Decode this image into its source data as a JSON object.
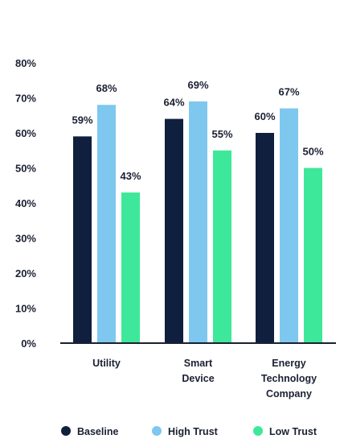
{
  "chart_data": {
    "type": "bar",
    "categories": [
      [
        "Utility"
      ],
      [
        "Smart",
        "Device"
      ],
      [
        "Energy",
        "Technology",
        "Company"
      ]
    ],
    "series": [
      {
        "name": "Baseline",
        "color": "#0f1f3d",
        "values": [
          59,
          64,
          60
        ],
        "labels": [
          "59%",
          "64%",
          "60%"
        ]
      },
      {
        "name": "High Trust",
        "color": "#7ec8ef",
        "values": [
          68,
          69,
          67
        ],
        "labels": [
          "68%",
          "69%",
          "67%"
        ]
      },
      {
        "name": "Low Trust",
        "color": "#3ee89a",
        "values": [
          43,
          55,
          50
        ],
        "labels": [
          "43%",
          "55%",
          "50%"
        ]
      }
    ],
    "ylim": [
      0,
      80
    ],
    "yticks": [
      "0%",
      "10%",
      "20%",
      "30%",
      "40%",
      "50%",
      "60%",
      "70%",
      "80%"
    ],
    "grid": false,
    "legend_position": "bottom"
  }
}
